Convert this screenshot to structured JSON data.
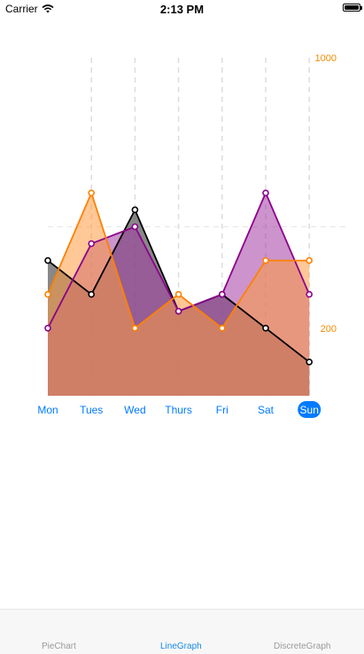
{
  "status_bar": {
    "carrier": "Carrier",
    "time": "2:13 PM"
  },
  "tabs": [
    {
      "label": "PieChart",
      "active": false
    },
    {
      "label": "LineGraph",
      "active": true
    },
    {
      "label": "DiscreteGraph",
      "active": false
    }
  ],
  "colors": {
    "accent": "#007aff",
    "axis_label": "#f08c00",
    "tab_active": "#1a8ae6",
    "tab_inactive": "#9a9a9a",
    "grid": "#dddddd"
  },
  "chart_data": {
    "type": "area",
    "categories": [
      "Mon",
      "Tues",
      "Wed",
      "Thurs",
      "Fri",
      "Sat",
      "Sun"
    ],
    "selected_category": "Sun",
    "y_labels": [
      "1000",
      "200"
    ],
    "ylim": [
      0,
      1000
    ],
    "grid": true,
    "series": [
      {
        "color": "#000000",
        "fill": "#555555",
        "fill_opacity": 0.7,
        "values": [
          400,
          300,
          550,
          250,
          300,
          200,
          100
        ]
      },
      {
        "color": "#8b008b",
        "fill": "#a23ba2",
        "fill_opacity": 0.55,
        "values": [
          200,
          450,
          500,
          250,
          300,
          600,
          300
        ]
      },
      {
        "color": "#ff8000",
        "fill": "#ff9a40",
        "fill_opacity": 0.55,
        "values": [
          300,
          600,
          200,
          300,
          200,
          400,
          400
        ]
      }
    ]
  }
}
